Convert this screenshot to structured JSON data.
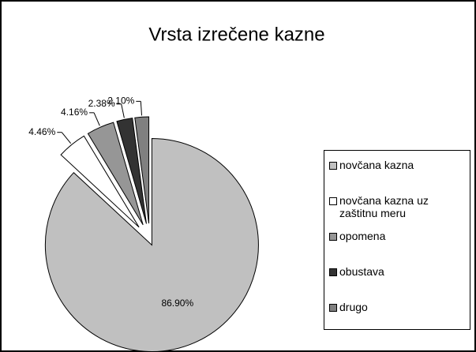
{
  "chart_data": {
    "type": "pie",
    "title": "Vrsta izrečene kazne",
    "categories": [
      "novčana kazna",
      "novčana kazna uz zaštitnu meru",
      "opomena",
      "obustava",
      "drugo"
    ],
    "values": [
      86.9,
      4.46,
      4.16,
      2.38,
      2.1
    ],
    "value_labels": [
      "86.90%",
      "4.46%",
      "4.16%",
      "2.38%",
      "2.10%"
    ],
    "colors": [
      "#c0c0c0",
      "#ffffff",
      "#969696",
      "#333333",
      "#808080"
    ],
    "legend": "right"
  }
}
